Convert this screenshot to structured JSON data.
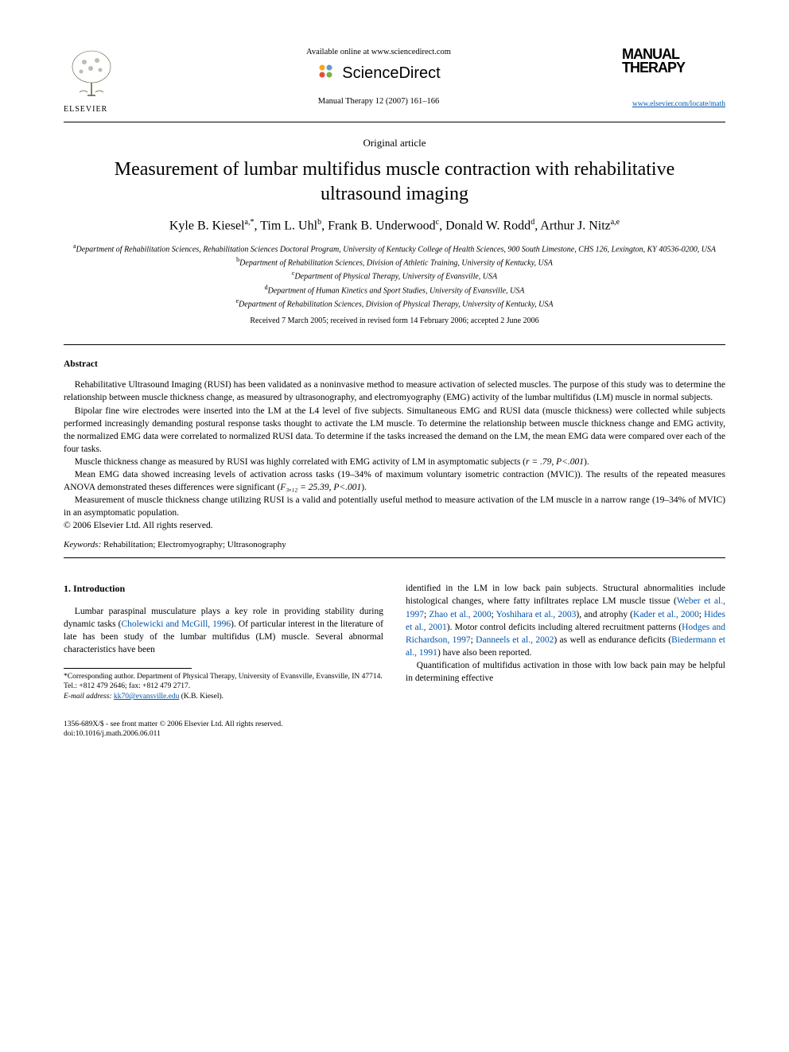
{
  "header": {
    "elsevier": "ELSEVIER",
    "available": "Available online at www.sciencedirect.com",
    "sciencedirect": "ScienceDirect",
    "journal_ref": "Manual Therapy 12 (2007) 161–166",
    "journal_logo_line1": "Manual",
    "journal_logo_line2": "Therapy",
    "journal_link": "www.elsevier.com/locate/math"
  },
  "article": {
    "type": "Original article",
    "title": "Measurement of lumbar multifidus muscle contraction with rehabilitative ultrasound imaging",
    "authors_html": "Kyle B. Kiesel<sup>a,*</sup>, Tim L. Uhl<sup>b</sup>, Frank B. Underwood<sup>c</sup>, Donald W. Rodd<sup>d</sup>, Arthur J. Nitz<sup>a,e</sup>",
    "affiliations": {
      "a": "Department of Rehabilitation Sciences, Rehabilitation Sciences Doctoral Program, University of Kentucky College of Health Sciences, 900 South Limestone, CHS 126, Lexington, KY 40536-0200, USA",
      "b": "Department of Rehabilitation Sciences, Division of Athletic Training, University of Kentucky, USA",
      "c": "Department of Physical Therapy, University of Evansville, USA",
      "d": "Department of Human Kinetics and Sport Studies, University of Evansville, USA",
      "e": "Department of Rehabilitation Sciences, Division of Physical Therapy, University of Kentucky, USA"
    },
    "received": "Received 7 March 2005; received in revised form 14 February 2006; accepted 2 June 2006"
  },
  "abstract": {
    "heading": "Abstract",
    "p1": "Rehabilitative Ultrasound Imaging (RUSI) has been validated as a noninvasive method to measure activation of selected muscles. The purpose of this study was to determine the relationship between muscle thickness change, as measured by ultrasonography, and electromyography (EMG) activity of the lumbar multifidus (LM) muscle in normal subjects.",
    "p2": "Bipolar fine wire electrodes were inserted into the LM at the L4 level of five subjects. Simultaneous EMG and RUSI data (muscle thickness) were collected while subjects performed increasingly demanding postural response tasks thought to activate the LM muscle. To determine the relationship between muscle thickness change and EMG activity, the normalized EMG data were correlated to normalized RUSI data. To determine if the tasks increased the demand on the LM, the mean EMG data were compared over each of the four tasks.",
    "p3_pre": "Muscle thickness change as measured by RUSI was highly correlated with EMG activity of LM in asymptomatic subjects (",
    "p3_stat": "r = .79, P<.001",
    "p3_post": ").",
    "p4_pre": "Mean EMG data showed increasing levels of activation across tasks (19–34% of maximum voluntary isometric contraction (MVIC)). The results of the repeated measures ANOVA demonstrated theses differences were significant (",
    "p4_stat": "F₃,₁₂ = 25.39, P<.001",
    "p4_post": ").",
    "p5": "Measurement of muscle thickness change utilizing RUSI is a valid and potentially useful method to measure activation of the LM muscle in a narrow range (19–34% of MVIC) in an asymptomatic population.",
    "copyright": "© 2006 Elsevier Ltd. All rights reserved."
  },
  "keywords": {
    "label": "Keywords:",
    "text": " Rehabilitation; Electromyography; Ultrasonography"
  },
  "intro": {
    "heading": "1. Introduction",
    "col1": "Lumbar paraspinal musculature plays a key role in providing stability during dynamic tasks (<span class=\"cite\">Cholewicki and McGill, 1996</span>). Of particular interest in the literature of late has been study of the lumbar multifidus (LM) muscle. Several abnormal characteristics have been",
    "col2a": "identified in the LM in low back pain subjects. Structural abnormalities include histological changes, where fatty infiltrates replace LM muscle tissue (<span class=\"cite\">Weber et al., 1997</span>; <span class=\"cite\">Zhao et al., 2000</span>; <span class=\"cite\">Yoshihara et al., 2003</span>), and atrophy (<span class=\"cite\">Kader et al., 2000</span>; <span class=\"cite\">Hides et al., 2001</span>). Motor control deficits including altered recruitment patterns (<span class=\"cite\">Hodges and Richardson, 1997</span>; <span class=\"cite\">Danneels et al., 2002</span>) as well as endurance deficits (<span class=\"cite\">Biedermann et al., 1991</span>) have also been reported.",
    "col2b": "Quantification of multifidus activation in those with low back pain may be helpful in determining effective"
  },
  "footnote": {
    "corresponding": "*Corresponding author. Department of Physical Therapy, University of Evansville, Evansville, IN 47714. Tel.: +812 479 2646; fax: +812 479 2717.",
    "email_label": "E-mail address:",
    "email": "kk70@evansville.edu",
    "email_name": "(K.B. Kiesel)."
  },
  "footer": {
    "issn": "1356-689X/$ - see front matter © 2006 Elsevier Ltd. All rights reserved.",
    "doi": "doi:10.1016/j.math.2006.06.011"
  },
  "colors": {
    "link": "#0055aa",
    "text": "#000000",
    "background": "#ffffff"
  }
}
